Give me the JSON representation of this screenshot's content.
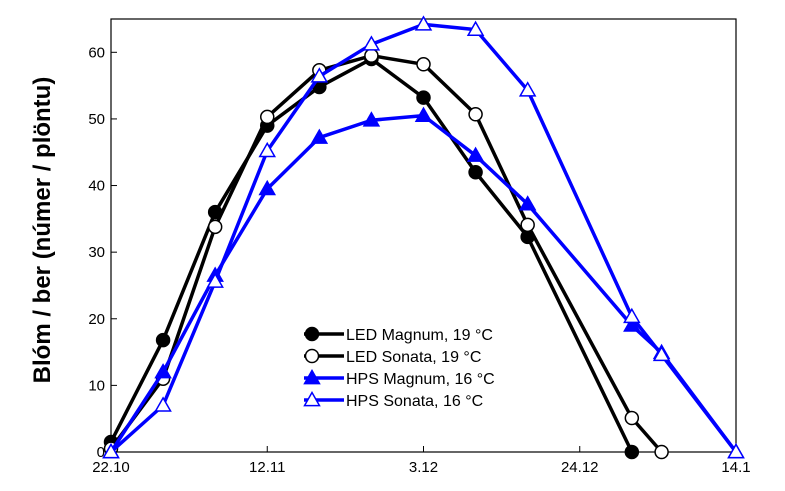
{
  "chart_data": {
    "type": "line",
    "xlabel": "",
    "ylabel": "Blóm / ber (númer / plöntu)",
    "x_tick_labels": [
      "22.10",
      "12.11",
      "3.12",
      "24.12",
      "14.1"
    ],
    "x_tick_days": [
      0,
      21,
      42,
      63,
      84
    ],
    "xlim": [
      0,
      84
    ],
    "ylim": [
      0,
      65
    ],
    "y_ticks": [
      0,
      10,
      20,
      30,
      40,
      50,
      60
    ],
    "grid": false,
    "legend_position": "bottom-center",
    "series": [
      {
        "name": "LED Magnum, 19 °C",
        "color": "#000000",
        "marker": "circle",
        "filled": true,
        "x": [
          0,
          7,
          14,
          21,
          28,
          35,
          42,
          49,
          56,
          70
        ],
        "y": [
          1.5,
          16.8,
          36,
          49,
          54.8,
          59,
          53.2,
          42,
          32.3,
          0
        ]
      },
      {
        "name": "LED Sonata, 19 °C",
        "color": "#000000",
        "marker": "circle",
        "filled": false,
        "x": [
          0,
          7,
          14,
          21,
          28,
          35,
          42,
          49,
          56,
          70,
          74
        ],
        "y": [
          0.5,
          11,
          33.8,
          50.3,
          57.3,
          59.5,
          58.2,
          50.7,
          34.1,
          5.1,
          0
        ]
      },
      {
        "name": "HPS Magnum, 16 °C",
        "color": "#0000ff",
        "marker": "triangle",
        "filled": true,
        "x": [
          0,
          7,
          14,
          21,
          28,
          35,
          42,
          49,
          56,
          70,
          74,
          84
        ],
        "y": [
          0,
          12,
          26.5,
          39.5,
          47.2,
          49.8,
          50.5,
          44.5,
          37.2,
          19,
          14.9,
          0
        ]
      },
      {
        "name": "HPS Sonata, 16 °C",
        "color": "#0000ff",
        "marker": "triangle",
        "filled": false,
        "x": [
          0,
          7,
          14,
          21,
          28,
          35,
          42,
          49,
          56,
          70,
          74,
          84
        ],
        "y": [
          0,
          7,
          25.6,
          45.2,
          56.4,
          61.2,
          64.2,
          63.4,
          54.3,
          20.3,
          14.6,
          0
        ]
      }
    ]
  }
}
